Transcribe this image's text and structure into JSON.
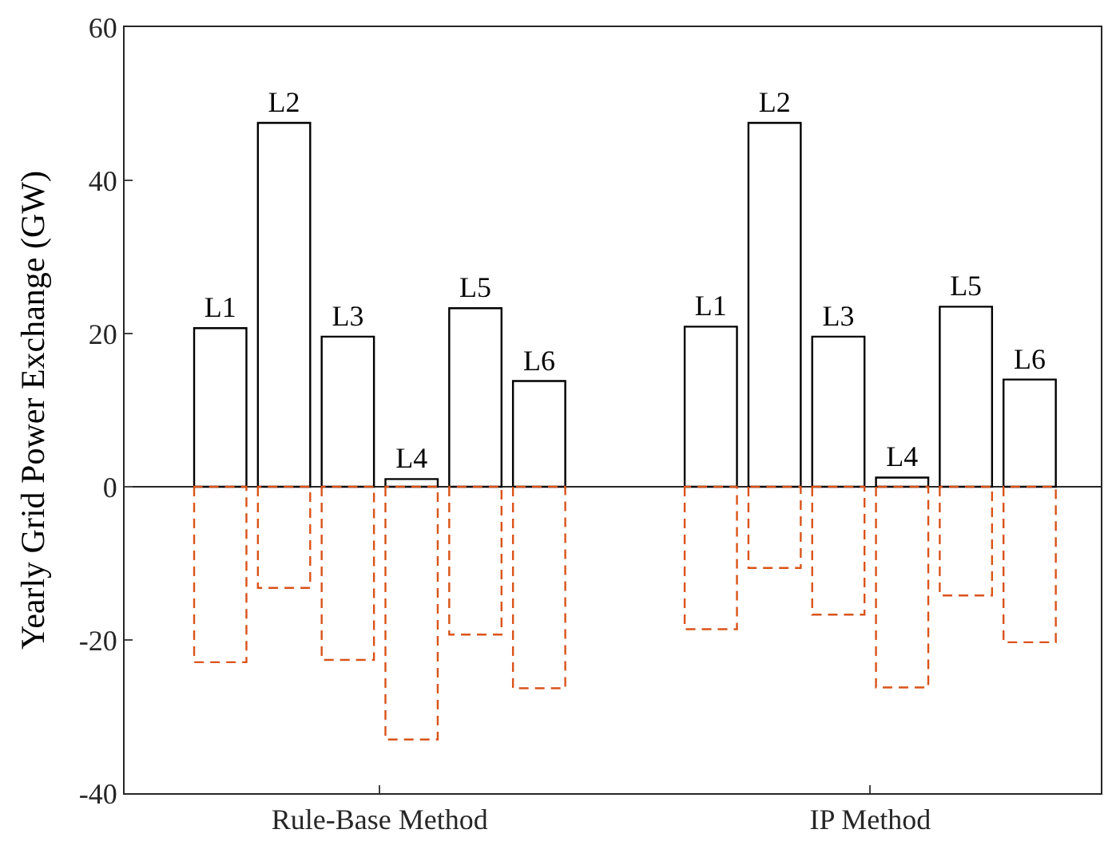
{
  "chart_data": {
    "type": "bar",
    "ylabel": "Yearly Grid Power Exchange (GW)",
    "categories": [
      "Rule-Base Method",
      "IP Method"
    ],
    "ylim": [
      -40,
      60
    ],
    "yticks": [
      -40,
      -20,
      0,
      20,
      40,
      60
    ],
    "grid": false,
    "legend": false,
    "ref_lines": [
      {
        "axis": "y",
        "value": 0,
        "color": "#262626"
      }
    ],
    "series": [
      {
        "name": "L1",
        "color": "#000000",
        "values": [
          20.7,
          20.9
        ]
      },
      {
        "color": "#d95319",
        "line_style": "dashed",
        "values": [
          -22.9,
          -18.6
        ]
      },
      {
        "name": "L2",
        "color": "#000000",
        "values": [
          47.5,
          47.5
        ]
      },
      {
        "color": "#d95319",
        "line_style": "dashed",
        "values": [
          -13.2,
          -10.6
        ]
      },
      {
        "name": "L3",
        "color": "#000000",
        "values": [
          19.6,
          19.6
        ]
      },
      {
        "color": "#d95319",
        "line_style": "dashed",
        "values": [
          -22.6,
          -16.7
        ]
      },
      {
        "name": "L4",
        "color": "#000000",
        "values": [
          1.0,
          1.2
        ]
      },
      {
        "color": "#d95319",
        "line_style": "dashed",
        "values": [
          -33.0,
          -26.2
        ]
      },
      {
        "name": "L5",
        "color": "#000000",
        "values": [
          23.3,
          23.5
        ]
      },
      {
        "color": "#d95319",
        "line_style": "dashed",
        "values": [
          -19.3,
          -14.2
        ]
      },
      {
        "name": "L6",
        "color": "#000000",
        "values": [
          13.8,
          14.0
        ]
      },
      {
        "color": "#d95319",
        "line_style": "dashed",
        "values": [
          -26.3,
          -20.3
        ]
      }
    ]
  }
}
